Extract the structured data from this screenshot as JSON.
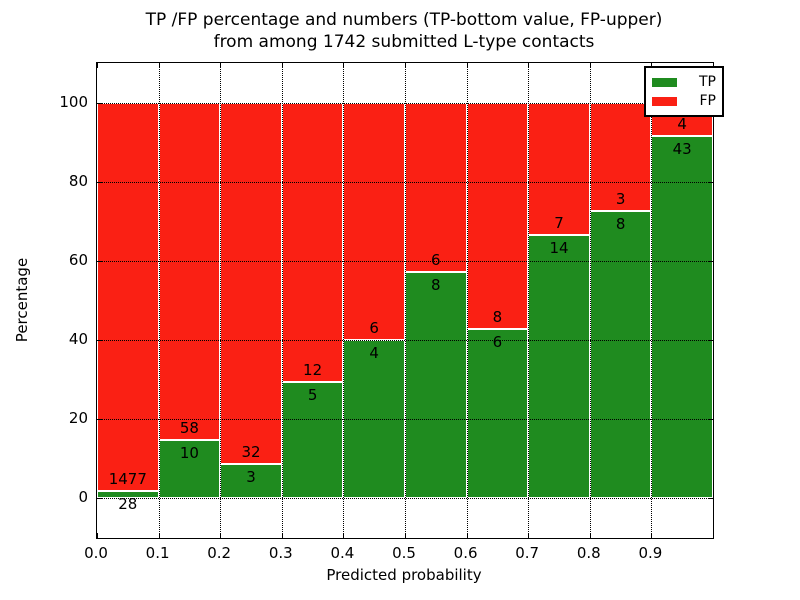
{
  "title": {
    "line1": "TP /FP percentage and numbers (TP-bottom value, FP-upper)",
    "line2": "from among 1742 submitted L-type contacts"
  },
  "chart_data": {
    "type": "bar",
    "variant": "stacked-percent",
    "title": "TP /FP percentage and numbers (TP-bottom value, FP-upper) from among 1742 submitted L-type contacts",
    "xlabel": "Predicted probability",
    "ylabel": "Percentage",
    "total_submitted": 1742,
    "xlim": [
      0.0,
      1.0
    ],
    "ylim": [
      -10,
      110
    ],
    "bin_width": 0.1,
    "xticks": [
      "0.0",
      "0.1",
      "0.2",
      "0.3",
      "0.4",
      "0.5",
      "0.6",
      "0.7",
      "0.8",
      "0.9"
    ],
    "yticks": [
      0,
      20,
      40,
      60,
      80,
      100
    ],
    "grid": {
      "style": "dotted",
      "color": "#000000",
      "x_positions": [
        0.1,
        0.2,
        0.3,
        0.4,
        0.5,
        0.6,
        0.7,
        0.8,
        0.9
      ],
      "y_positions": [
        0,
        20,
        40,
        60,
        80,
        100
      ]
    },
    "legend_position": "upper-right",
    "bins": [
      "0.0-0.1",
      "0.1-0.2",
      "0.2-0.3",
      "0.3-0.4",
      "0.4-0.5",
      "0.5-0.6",
      "0.6-0.7",
      "0.7-0.8",
      "0.8-0.9",
      "0.9-1.0"
    ],
    "series": [
      {
        "name": "TP",
        "color": "#1f8b1f",
        "counts": [
          28,
          10,
          3,
          5,
          4,
          8,
          6,
          14,
          8,
          43
        ]
      },
      {
        "name": "FP",
        "color": "#fa2014",
        "counts": [
          1477,
          58,
          32,
          12,
          6,
          6,
          8,
          7,
          3,
          4
        ]
      }
    ],
    "tp_percent": [
      1.86,
      14.71,
      8.57,
      29.41,
      40.0,
      57.14,
      42.86,
      66.67,
      72.73,
      91.49
    ],
    "bar_edge_color": "#ffffff",
    "annotation_note": "TP-bottom value, FP-upper"
  },
  "colors": {
    "tp": "#1f8b1f",
    "fp": "#fa2014",
    "background": "#ffffff",
    "text": "#000000",
    "grid": "#000000"
  }
}
